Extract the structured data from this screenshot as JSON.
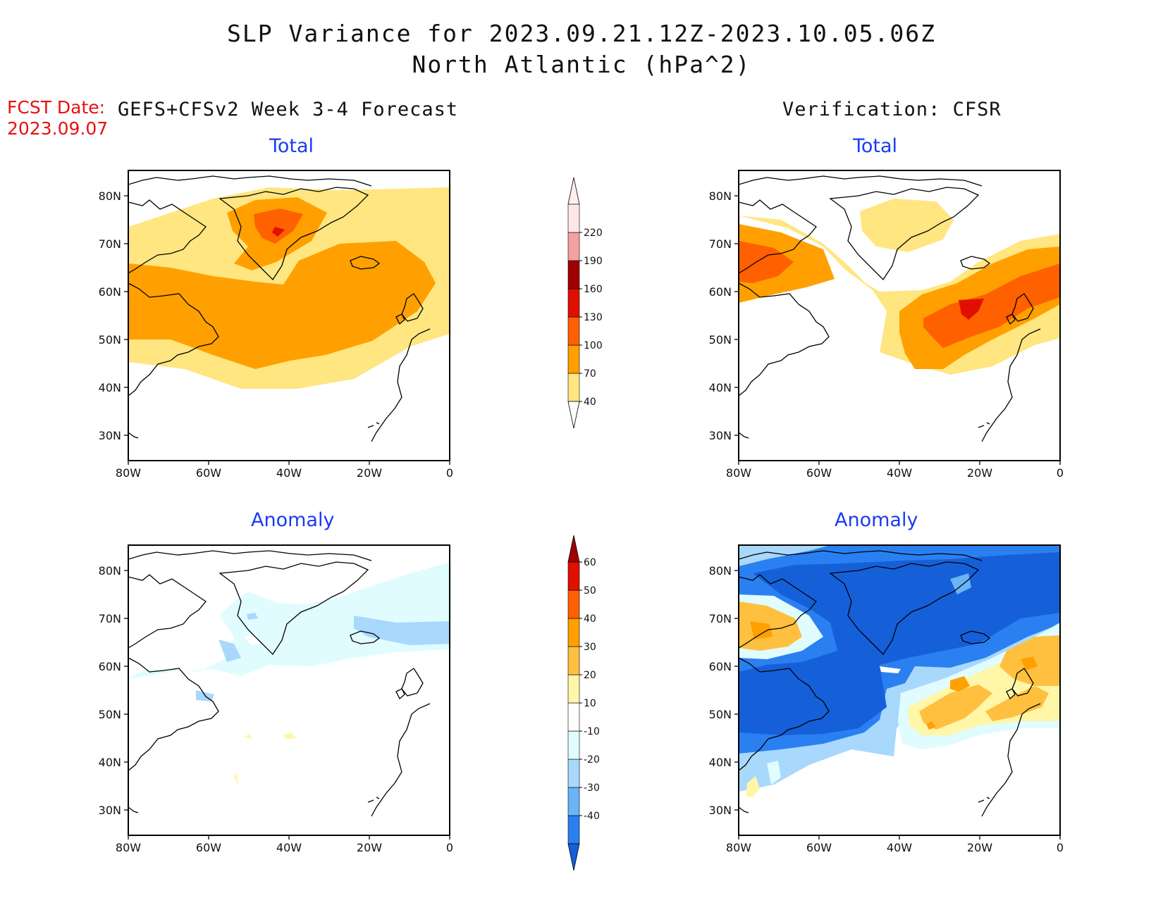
{
  "header": {
    "title_line1": "SLP Variance for 2023.09.21.12Z-2023.10.05.06Z",
    "title_line2": "North Atlantic (hPa^2)"
  },
  "fcst": {
    "label": "FCST Date:",
    "date": "2023.09.07"
  },
  "left_column_title": "GEFS+CFSv2 Week 3-4 Forecast",
  "right_column_title": "Verification: CFSR",
  "panels": [
    {
      "id": "fc-total",
      "title": "Total"
    },
    {
      "id": "ver-total",
      "title": "Total"
    },
    {
      "id": "fc-anom",
      "title": "Anomaly"
    },
    {
      "id": "ver-anom",
      "title": "Anomaly"
    }
  ],
  "axes": {
    "lat_ticks": [
      "80N",
      "70N",
      "60N",
      "50N",
      "40N",
      "30N"
    ],
    "lon_ticks": [
      "80W",
      "60W",
      "40W",
      "20W",
      "0"
    ]
  },
  "colorbar_total": {
    "labels": [
      "40",
      "70",
      "100",
      "130",
      "160",
      "190",
      "220"
    ],
    "colors": [
      "#ffe680",
      "#ffa000",
      "#ff6000",
      "#e01000",
      "#a00000",
      "#f2a0a0",
      "#fde6e6"
    ]
  },
  "colorbar_anomaly": {
    "labels": [
      "-40",
      "-30",
      "-20",
      "-10",
      "10",
      "20",
      "30",
      "40",
      "50",
      "60"
    ],
    "colors": [
      "#1560d8",
      "#2a80f0",
      "#6ab4f8",
      "#a8d8fc",
      "#e0fcff",
      "#ffffff",
      "#fff6a8",
      "#ffc040",
      "#ffa000",
      "#ff6000",
      "#e01000",
      "#a00000"
    ]
  }
}
